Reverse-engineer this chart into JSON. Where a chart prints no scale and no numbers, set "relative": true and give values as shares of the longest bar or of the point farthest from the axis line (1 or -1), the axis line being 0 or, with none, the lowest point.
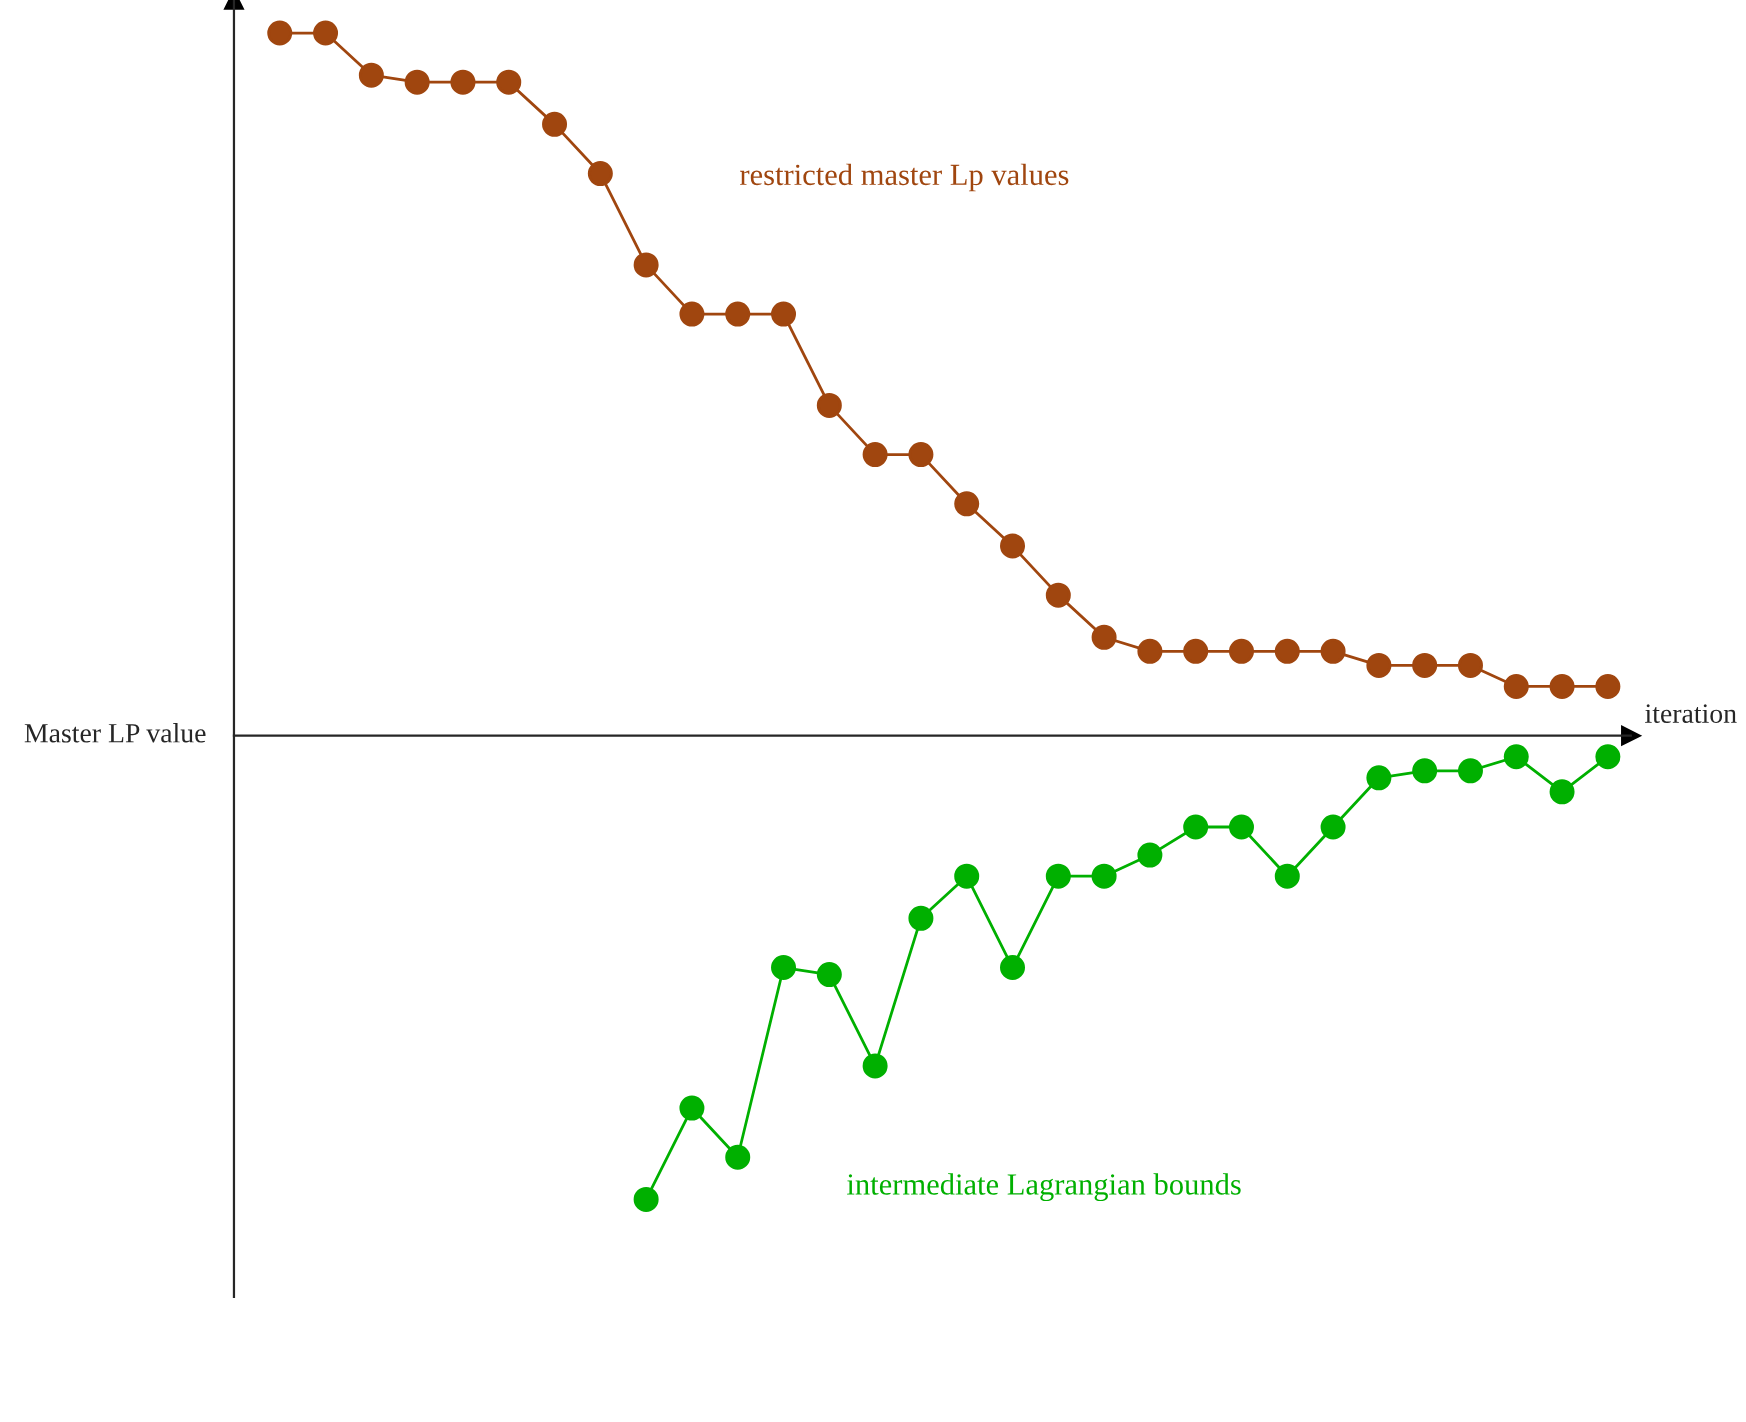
{
  "chart_data": {
    "type": "line",
    "relative": true,
    "xlabel": "iteration",
    "ylabel": "Master LP value",
    "marker": "circle",
    "legend": false,
    "categories": [
      null,
      null,
      null,
      null,
      null,
      null,
      null,
      null,
      null,
      null,
      null,
      null,
      null,
      null,
      null,
      null,
      null,
      null,
      null,
      null,
      null,
      null,
      null,
      null,
      null,
      null,
      null,
      null,
      null,
      null
    ],
    "series": [
      {
        "name": "restricted master Lp values",
        "color": "#a0460f",
        "values": [
          1,
          1,
          0.94,
          0.93,
          0.93,
          0.93,
          0.87,
          0.8,
          0.67,
          0.6,
          0.6,
          0.6,
          0.47,
          0.4,
          0.4,
          0.33,
          0.27,
          0.2,
          0.14,
          0.12,
          0.12,
          0.12,
          0.12,
          0.12,
          0.1,
          0.1,
          0.1,
          0.07,
          0.07,
          0.07
        ]
      },
      {
        "name": "intermediate Lagrangian bounds",
        "color": "#00b000",
        "values": [
          null,
          null,
          null,
          null,
          null,
          null,
          null,
          null,
          -0.66,
          -0.53,
          -0.6,
          -0.33,
          -0.34,
          -0.47,
          -0.26,
          -0.2,
          -0.33,
          -0.2,
          -0.2,
          -0.17,
          -0.13,
          -0.13,
          -0.2,
          -0.13,
          -0.06,
          -0.05,
          -0.05,
          -0.03,
          -0.08,
          -0.03
        ]
      }
    ]
  }
}
